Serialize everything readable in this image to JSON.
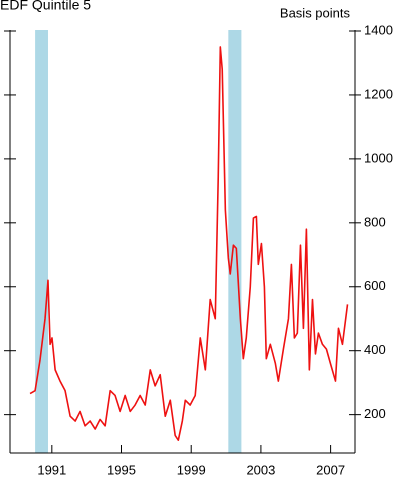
{
  "chart_data": {
    "type": "line",
    "title": "EDF Quintile 5",
    "y_axis_label": "Basis points",
    "x": [
      1989.75,
      1990.04,
      1990.32,
      1990.61,
      1990.78,
      1990.9,
      1991.01,
      1991.19,
      1991.47,
      1991.76,
      1992.05,
      1992.34,
      1992.62,
      1992.91,
      1993.2,
      1993.49,
      1993.77,
      1994.06,
      1994.35,
      1994.63,
      1994.92,
      1995.21,
      1995.5,
      1995.78,
      1996.07,
      1996.36,
      1996.65,
      1996.93,
      1997.22,
      1997.51,
      1997.8,
      1998.08,
      1998.26,
      1998.49,
      1998.66,
      1998.94,
      1999.23,
      1999.52,
      1999.81,
      2000.09,
      2000.38,
      2000.55,
      2000.67,
      2000.78,
      2000.96,
      2001.13,
      2001.24,
      2001.42,
      2001.59,
      2001.82,
      2001.99,
      2002.16,
      2002.39,
      2002.57,
      2002.74,
      2002.85,
      2003.03,
      2003.2,
      2003.31,
      2003.54,
      2003.83,
      2004.0,
      2004.29,
      2004.58,
      2004.75,
      2004.92,
      2005.09,
      2005.27,
      2005.44,
      2005.61,
      2005.78,
      2005.96,
      2006.13,
      2006.3,
      2006.53,
      2006.76,
      2006.99,
      2007.28,
      2007.45,
      2007.68,
      2007.97
    ],
    "series": [
      {
        "color": "#ee1111",
        "values": [
          266,
          275,
          370,
          500,
          620,
          420,
          440,
          340,
          305,
          275,
          195,
          180,
          210,
          165,
          180,
          155,
          185,
          165,
          275,
          260,
          210,
          260,
          210,
          230,
          260,
          230,
          340,
          290,
          325,
          195,
          245,
          135,
          120,
          180,
          245,
          230,
          260,
          440,
          340,
          560,
          500,
          940,
          1350,
          1280,
          840,
          690,
          640,
          730,
          720,
          500,
          375,
          440,
          600,
          815,
          820,
          670,
          735,
          600,
          375,
          420,
          360,
          305,
          405,
          500,
          670,
          440,
          455,
          730,
          470,
          780,
          340,
          560,
          390,
          455,
          420,
          405,
          360,
          305,
          470,
          420,
          545
        ]
      }
    ],
    "xlim": [
      1988.6,
      2008.4
    ],
    "xticks": [
      1991,
      1995,
      1999,
      2003,
      2007
    ],
    "ylim": [
      80,
      1400
    ],
    "yticks": [
      200,
      400,
      600,
      800,
      1000,
      1200,
      1400
    ],
    "shaded_periods": [
      [
        1990.04,
        1990.78
      ],
      [
        2001.13,
        2001.88
      ]
    ],
    "shade_color": "#add8e6",
    "grid": false
  }
}
